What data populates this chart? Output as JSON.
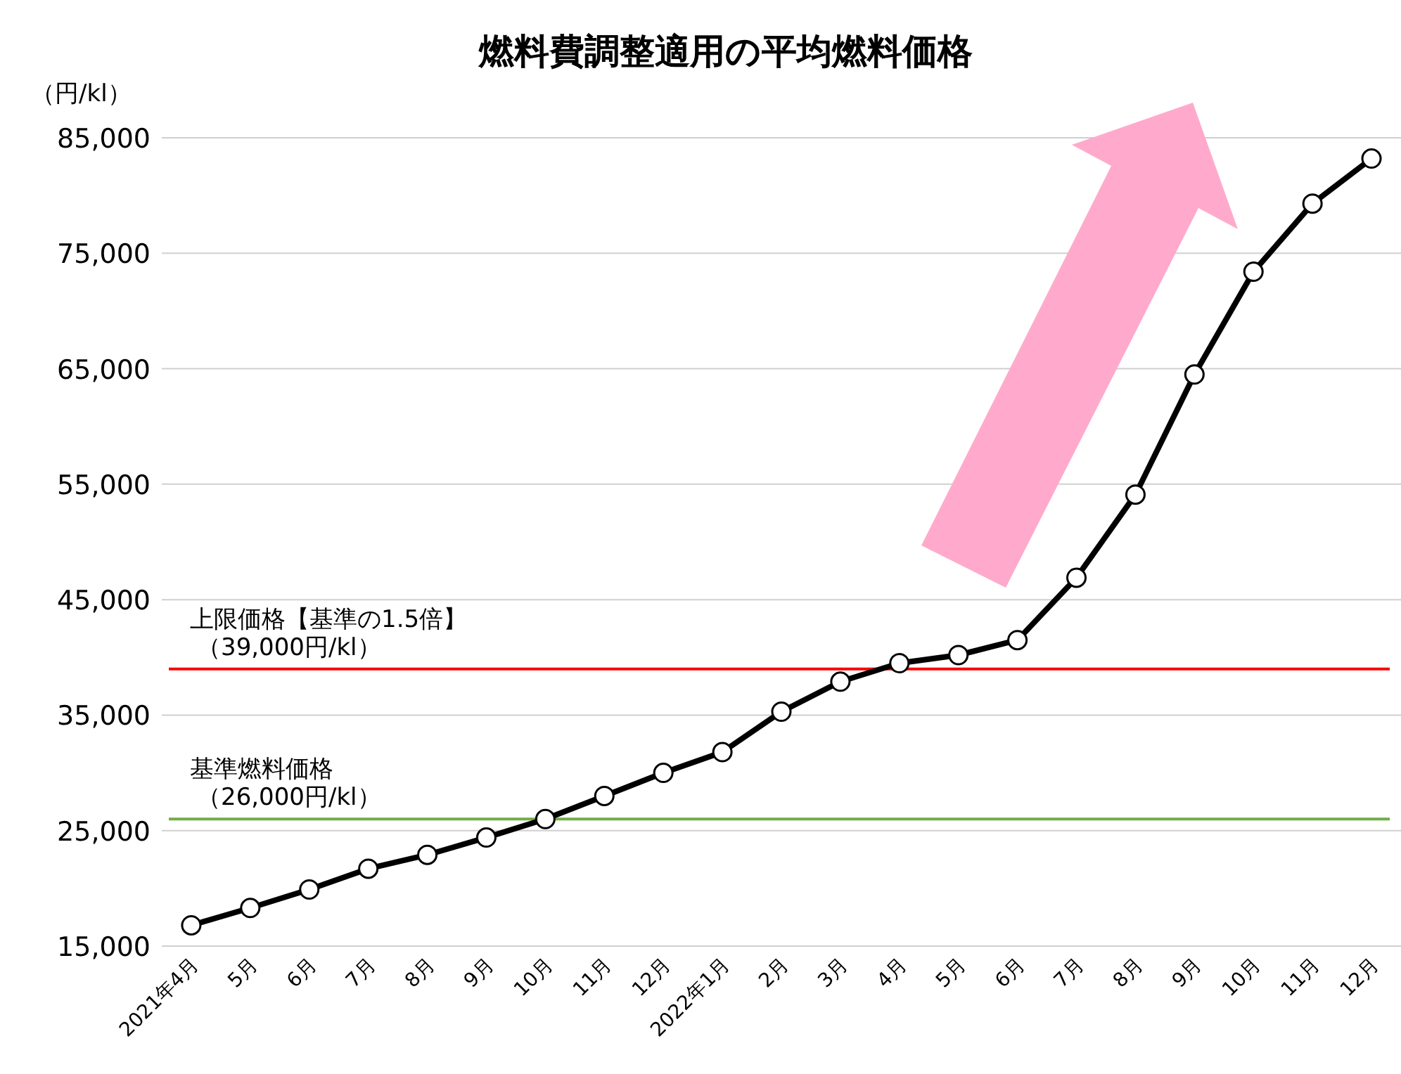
{
  "chart_data": {
    "type": "line",
    "title": "燃料費調整適用の平均燃料価格",
    "ylabel": "（円/kl）",
    "categories": [
      "2021年4月",
      "5月",
      "6月",
      "7月",
      "8月",
      "9月",
      "10月",
      "11月",
      "12月",
      "2022年1月",
      "2月",
      "3月",
      "4月",
      "5月",
      "6月",
      "7月",
      "8月",
      "9月",
      "10月",
      "11月",
      "12月"
    ],
    "series": [
      {
        "color": "#000000",
        "values": [
          16800,
          18300,
          19900,
          21700,
          22900,
          24400,
          26000,
          28000,
          30000,
          31800,
          35300,
          37900,
          39500,
          40200,
          41500,
          46900,
          54100,
          64500,
          73400,
          79300,
          83200
        ]
      }
    ],
    "ylim": [
      15000,
      85000
    ],
    "yticks": [
      {
        "value": 15000,
        "label": "15,000"
      },
      {
        "value": 25000,
        "label": "25,000"
      },
      {
        "value": 35000,
        "label": "35,000"
      },
      {
        "value": 45000,
        "label": "45,000"
      },
      {
        "value": 55000,
        "label": "55,000"
      },
      {
        "value": 65000,
        "label": "65,000"
      },
      {
        "value": 75000,
        "label": "75,000"
      },
      {
        "value": 85000,
        "label": "85,000"
      }
    ],
    "grid": "y",
    "marker": "circle",
    "line_style": "solid",
    "ref_lines": [
      {
        "axis": "y",
        "value": 39000,
        "label": "上限価格【基準の1.5倍】（39,000円/kl）",
        "color": "#ff0000"
      },
      {
        "axis": "y",
        "value": 26000,
        "label": "基準燃料価格（26,000円/kl）",
        "color": "#70ad47"
      }
    ]
  }
}
